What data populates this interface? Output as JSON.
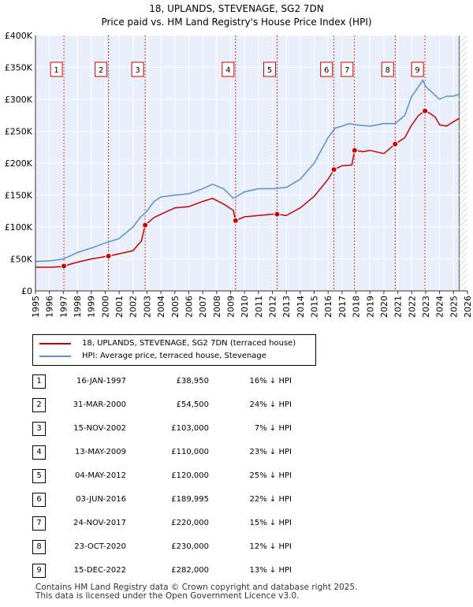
{
  "chart_data": {
    "type": "line",
    "title": "18, UPLANDS, STEVENAGE, SG2 7DN",
    "subtitle": "Price paid vs. HM Land Registry's House Price Index (HPI)",
    "xlabel": "",
    "ylabel": "",
    "xlim": [
      1995,
      2026
    ],
    "ylim": [
      0,
      400000
    ],
    "x_ticks": [
      "1995",
      "1996",
      "1997",
      "1998",
      "1999",
      "2000",
      "2001",
      "2002",
      "2003",
      "2004",
      "2005",
      "2006",
      "2007",
      "2008",
      "2009",
      "2010",
      "2011",
      "2012",
      "2013",
      "2014",
      "2015",
      "2016",
      "2017",
      "2018",
      "2019",
      "2020",
      "2021",
      "2022",
      "2023",
      "2024",
      "2025",
      "2026"
    ],
    "y_ticks": [
      {
        "value": 0,
        "label": "£0"
      },
      {
        "value": 50000,
        "label": "£50K"
      },
      {
        "value": 100000,
        "label": "£100K"
      },
      {
        "value": 150000,
        "label": "£150K"
      },
      {
        "value": 200000,
        "label": "£200K"
      },
      {
        "value": 250000,
        "label": "£250K"
      },
      {
        "value": 300000,
        "label": "£300K"
      },
      {
        "value": 350000,
        "label": "£350K"
      },
      {
        "value": 400000,
        "label": "£400K"
      }
    ],
    "grid": true,
    "series": [
      {
        "name": "18, UPLANDS, STEVENAGE, SG2 7DN (terraced house)",
        "color": "#cc0000",
        "x": [
          1995.0,
          1996.0,
          1996.9,
          1997.04,
          1998.0,
          1999.0,
          2000.24,
          2001.0,
          2002.0,
          2002.6,
          2002.87,
          2003.5,
          2004.0,
          2005.0,
          2006.0,
          2007.0,
          2007.7,
          2008.5,
          2009.2,
          2009.36,
          2010.0,
          2011.0,
          2012.0,
          2012.34,
          2013.0,
          2014.0,
          2015.0,
          2016.0,
          2016.42,
          2017.0,
          2017.7,
          2017.9,
          2018.5,
          2019.0,
          2020.0,
          2020.81,
          2021.5,
          2022.0,
          2022.5,
          2022.95,
          2023.3,
          2023.7,
          2024.0,
          2024.5,
          2025.0,
          2025.4
        ],
        "y": [
          37000,
          37000,
          38000,
          38950,
          45000,
          50000,
          54500,
          58000,
          63000,
          78000,
          103000,
          115000,
          120000,
          130000,
          132000,
          140000,
          145000,
          136000,
          126000,
          110000,
          116000,
          118000,
          120000,
          120000,
          118000,
          130000,
          148000,
          175000,
          189995,
          196000,
          197000,
          220000,
          218000,
          220000,
          215000,
          230000,
          240000,
          260000,
          275000,
          282000,
          278000,
          272000,
          260000,
          258000,
          265000,
          270000
        ]
      },
      {
        "name": "HPI: Average price, terraced house, Stevenage",
        "color": "#5b8fd0",
        "x": [
          1995.0,
          1996.0,
          1997.0,
          1998.0,
          1999.0,
          2000.0,
          2001.0,
          2002.0,
          2002.5,
          2003.0,
          2003.5,
          2004.0,
          2005.0,
          2006.0,
          2007.0,
          2007.7,
          2008.5,
          2009.2,
          2010.0,
          2011.0,
          2012.0,
          2013.0,
          2014.0,
          2015.0,
          2016.0,
          2016.5,
          2017.0,
          2017.5,
          2018.0,
          2019.0,
          2020.0,
          2020.8,
          2021.5,
          2022.0,
          2022.5,
          2022.8,
          2023.0,
          2023.5,
          2024.0,
          2024.5,
          2025.0,
          2025.4
        ],
        "y": [
          46000,
          47000,
          50000,
          60000,
          67000,
          75000,
          82000,
          100000,
          115000,
          125000,
          140000,
          147000,
          150000,
          152000,
          160000,
          167000,
          160000,
          145000,
          155000,
          160000,
          160000,
          162000,
          175000,
          200000,
          240000,
          255000,
          258000,
          262000,
          260000,
          258000,
          262000,
          262000,
          275000,
          305000,
          320000,
          330000,
          320000,
          310000,
          300000,
          305000,
          305000,
          308000
        ]
      }
    ],
    "markers": [
      {
        "label": "1",
        "x": 1997.04,
        "y": 38950
      },
      {
        "label": "2",
        "x": 2000.24,
        "y": 54500
      },
      {
        "label": "3",
        "x": 2002.87,
        "y": 103000
      },
      {
        "label": "4",
        "x": 2009.36,
        "y": 110000
      },
      {
        "label": "5",
        "x": 2012.34,
        "y": 120000
      },
      {
        "label": "6",
        "x": 2016.42,
        "y": 189995
      },
      {
        "label": "7",
        "x": 2017.9,
        "y": 220000
      },
      {
        "label": "8",
        "x": 2020.81,
        "y": 230000
      },
      {
        "label": "9",
        "x": 2022.95,
        "y": 282000
      }
    ],
    "future_shade_from": 2025.4
  },
  "legend": {
    "items": [
      {
        "label": "18, UPLANDS, STEVENAGE, SG2 7DN (terraced house)",
        "color": "#cc0000"
      },
      {
        "label": "HPI: Average price, terraced house, Stevenage",
        "color": "#5b8fd0"
      }
    ]
  },
  "transactions": [
    {
      "num": "1",
      "date": "16-JAN-1997",
      "price": "£38,950",
      "hpi": "16% ↓ HPI"
    },
    {
      "num": "2",
      "date": "31-MAR-2000",
      "price": "£54,500",
      "hpi": "24% ↓ HPI"
    },
    {
      "num": "3",
      "date": "15-NOV-2002",
      "price": "£103,000",
      "hpi": "7% ↓ HPI"
    },
    {
      "num": "4",
      "date": "13-MAY-2009",
      "price": "£110,000",
      "hpi": "23% ↓ HPI"
    },
    {
      "num": "5",
      "date": "04-MAY-2012",
      "price": "£120,000",
      "hpi": "25% ↓ HPI"
    },
    {
      "num": "6",
      "date": "03-JUN-2016",
      "price": "£189,995",
      "hpi": "22% ↓ HPI"
    },
    {
      "num": "7",
      "date": "24-NOV-2017",
      "price": "£220,000",
      "hpi": "15% ↓ HPI"
    },
    {
      "num": "8",
      "date": "23-OCT-2020",
      "price": "£230,000",
      "hpi": "12% ↓ HPI"
    },
    {
      "num": "9",
      "date": "15-DEC-2022",
      "price": "£282,000",
      "hpi": "13% ↓ HPI"
    }
  ],
  "footer": {
    "line1": "Contains HM Land Registry data © Crown copyright and database right 2025.",
    "line2": "This data is licensed under the Open Government Licence v3.0."
  }
}
